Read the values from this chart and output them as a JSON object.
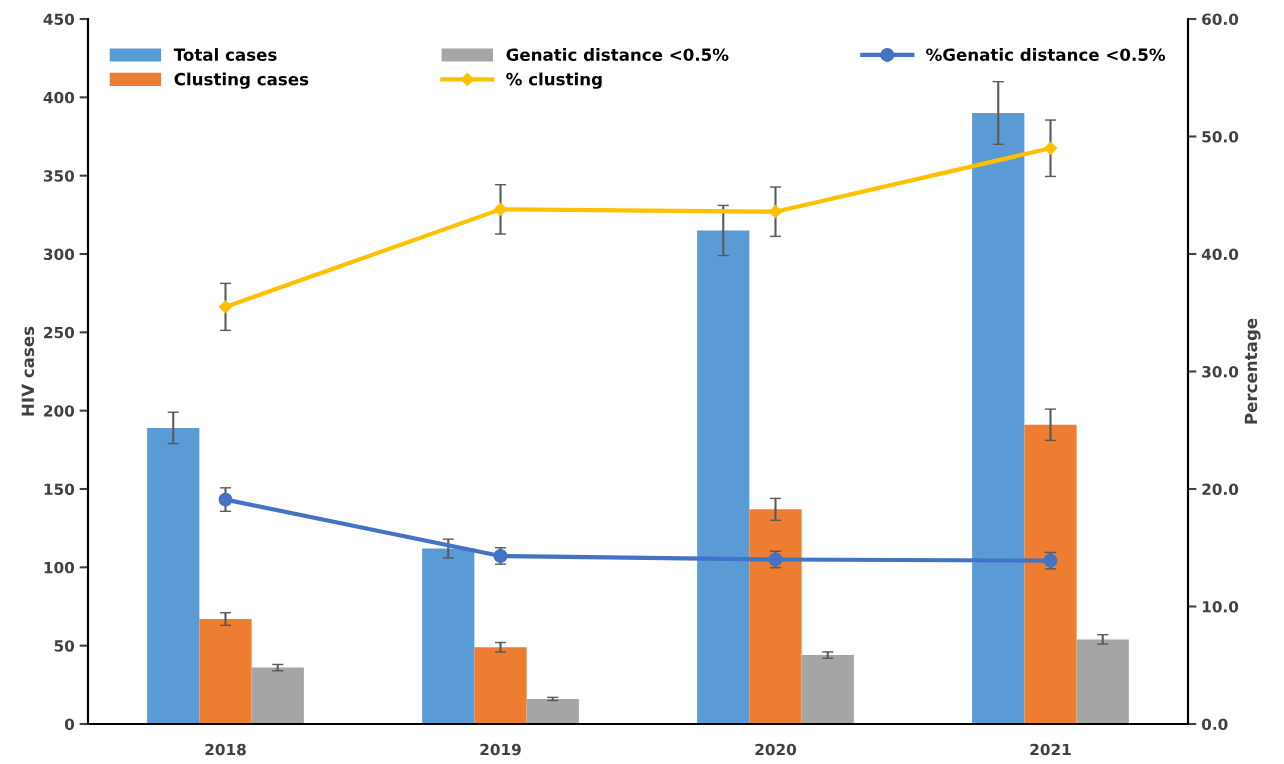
{
  "chart_data": {
    "type": "bar",
    "ylabel": "HIV cases",
    "y2label": "Percentage",
    "categories": [
      "2018",
      "2019",
      "2020",
      "2021"
    ],
    "series": [
      {
        "name": "Total cases",
        "color": "#5b9bd5",
        "values": [
          189,
          112,
          315,
          390
        ],
        "errors": [
          10,
          6,
          16,
          20
        ]
      },
      {
        "name": "Clusting cases",
        "color": "#ed7d31",
        "values": [
          67,
          49,
          137,
          191
        ],
        "errors": [
          4,
          3,
          7,
          10
        ]
      },
      {
        "name": "Genatic distance <0.5%",
        "color": "#a5a5a5",
        "values": [
          36,
          16,
          44,
          54
        ],
        "errors": [
          2,
          1,
          2,
          3
        ]
      },
      {
        "name": "% clusting",
        "type": "line",
        "axis": "y2",
        "marker": "diamond",
        "color": "#ffc000",
        "values": [
          35.5,
          43.8,
          43.6,
          49.0
        ],
        "errors": [
          2.0,
          2.1,
          2.1,
          2.4
        ]
      },
      {
        "name": "%Genatic distance <0.5%",
        "type": "line",
        "axis": "y2",
        "marker": "circle",
        "color": "#4472c4",
        "values": [
          19.1,
          14.3,
          14.0,
          13.9
        ],
        "errors": [
          1.0,
          0.7,
          0.7,
          0.7
        ]
      }
    ],
    "ylim": [
      0,
      450
    ],
    "yticks": [
      0,
      50,
      100,
      150,
      200,
      250,
      300,
      350,
      400,
      450
    ],
    "y2lim": [
      0,
      60
    ],
    "y2ticks": [
      {
        "value": 0,
        "label": "0.0"
      },
      {
        "value": 10,
        "label": "10.0"
      },
      {
        "value": 20,
        "label": "20.0"
      },
      {
        "value": 30,
        "label": "30.0"
      },
      {
        "value": 40,
        "label": "40.0"
      },
      {
        "value": 50,
        "label": "50.0"
      },
      {
        "value": 60,
        "label": "60.0"
      }
    ],
    "grid": false,
    "legend": "top"
  }
}
